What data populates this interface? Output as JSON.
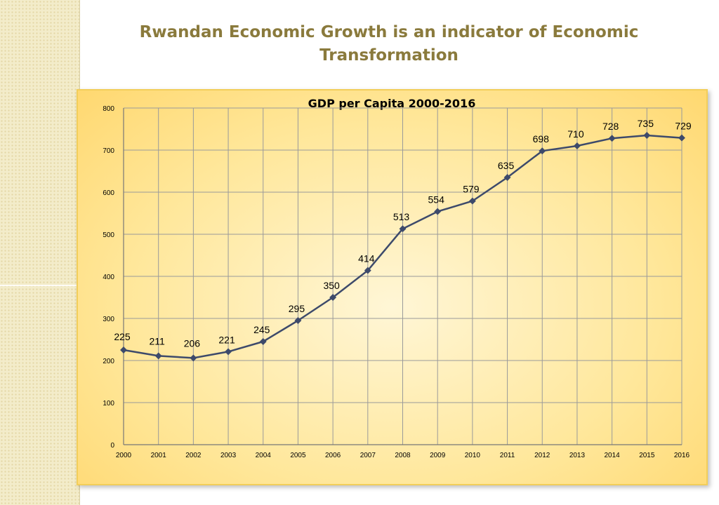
{
  "slide": {
    "title_line1": "Rwandan Economic Growth is an indicator of Economic",
    "title_line2": "Transformation"
  },
  "colors": {
    "line": "#3d4a6b",
    "grid": "#9a9a9a",
    "title": "#8a7a3c"
  },
  "chart_data": {
    "type": "line",
    "title": "GDP per Capita 2000-2016",
    "xlabel": "",
    "ylabel": "",
    "ylim": [
      0,
      800
    ],
    "yticks": [
      0,
      100,
      200,
      300,
      400,
      500,
      600,
      700,
      800
    ],
    "grid": true,
    "categories": [
      "2000",
      "2001",
      "2002",
      "2003",
      "2004",
      "2005",
      "2006",
      "2007",
      "2008",
      "2009",
      "2010",
      "2011",
      "2012",
      "2013",
      "2014",
      "2015",
      "2016"
    ],
    "series": [
      {
        "name": "GDP per Capita",
        "values": [
          225,
          211,
          206,
          221,
          245,
          295,
          350,
          414,
          513,
          554,
          579,
          635,
          698,
          710,
          728,
          735,
          729
        ]
      }
    ]
  }
}
